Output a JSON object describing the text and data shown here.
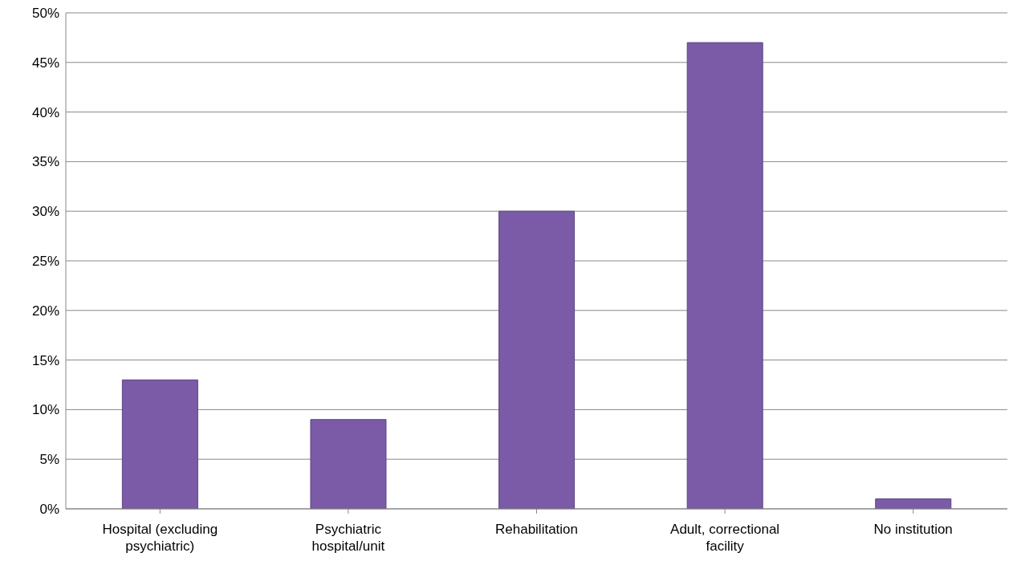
{
  "chart_data": {
    "type": "bar",
    "categories": [
      "Hospital (excluding psychiatric)",
      "Psychiatric hospital/unit",
      "Rehabilitation",
      "Adult, correctional facility",
      "No institution"
    ],
    "values": [
      13,
      9,
      30,
      47,
      1
    ],
    "color": "#7b5ba8",
    "ylim": [
      0,
      50
    ],
    "yticks": [
      {
        "value": 0,
        "label": "0%"
      },
      {
        "value": 5,
        "label": "5%"
      },
      {
        "value": 10,
        "label": "10%"
      },
      {
        "value": 15,
        "label": "15%"
      },
      {
        "value": 20,
        "label": "20%"
      },
      {
        "value": 25,
        "label": "25%"
      },
      {
        "value": 30,
        "label": "30%"
      },
      {
        "value": 35,
        "label": "35%"
      },
      {
        "value": 40,
        "label": "40%"
      },
      {
        "value": 45,
        "label": "45%"
      },
      {
        "value": 50,
        "label": "50%"
      }
    ],
    "grid": "y",
    "legend": false
  }
}
